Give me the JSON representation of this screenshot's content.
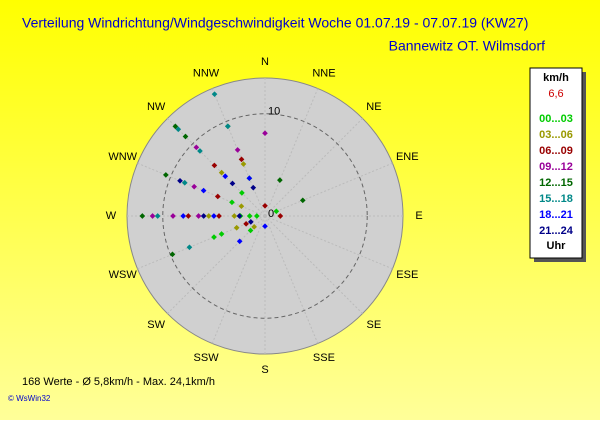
{
  "chart_data": {
    "type": "polar-scatter",
    "title": "Verteilung Windrichtung/Windgeschwindigkeit  Woche 01.07.19 - 07.07.19 (KW27)",
    "subtitle": "Bannewitz OT. Wilmsdorf",
    "directions": [
      "N",
      "NNE",
      "NE",
      "ENE",
      "E",
      "ESE",
      "SE",
      "SSE",
      "S",
      "SSW",
      "SW",
      "WSW",
      "W",
      "WNW",
      "NW",
      "NNW"
    ],
    "rlim": [
      0,
      13.5
    ],
    "rticks": [
      0,
      10
    ],
    "legend_title": "km/h",
    "legend_note": "6,6",
    "legend_footer": "Uhr",
    "series": [
      {
        "name": "00...03",
        "color": "#00cc00",
        "dir": [
          270,
          270,
          270,
          315,
          247.5,
          247.5,
          292.5,
          337.5,
          67.5,
          225
        ],
        "values": [
          0.8,
          1.5,
          2.4,
          3.2,
          4.6,
          5.4,
          3.5,
          4.0,
          1.2,
          2.0
        ]
      },
      {
        "name": "03...06",
        "color": "#999900",
        "dir": [
          270,
          270,
          292.5,
          315,
          337.5,
          225,
          247.5
        ],
        "values": [
          3.0,
          5.5,
          2.5,
          6.0,
          5.5,
          1.5,
          3.0
        ]
      },
      {
        "name": "06...09",
        "color": "#990000",
        "dir": [
          270,
          270,
          292.5,
          315,
          90,
          337.5,
          0,
          247.5
        ],
        "values": [
          4.5,
          7.5,
          5.0,
          7.0,
          1.5,
          6.0,
          1.0,
          2.0
        ]
      },
      {
        "name": "09...12",
        "color": "#990099",
        "dir": [
          270,
          270,
          270,
          292.5,
          315,
          0,
          337.5
        ],
        "values": [
          6.5,
          9.0,
          11.0,
          7.5,
          9.5,
          8.1,
          7.0
        ]
      },
      {
        "name": "12...15",
        "color": "#006600",
        "dir": [
          270,
          315,
          315,
          292.5,
          337.5,
          247.5,
          67.5,
          22.5
        ],
        "values": [
          12.0,
          11.0,
          12.4,
          10.5,
          9.5,
          9.8,
          4.0,
          3.8
        ]
      },
      {
        "name": "15...18",
        "color": "#008888",
        "dir": [
          270,
          315,
          315,
          337.5,
          337.5,
          292.5,
          247.5
        ],
        "values": [
          10.5,
          9.0,
          12.0,
          12.9,
          9.5,
          8.5,
          8.0
        ]
      },
      {
        "name": "18...21",
        "color": "#0000ff",
        "dir": [
          270,
          270,
          292.5,
          315,
          337.5,
          225,
          180
        ],
        "values": [
          5.0,
          8.0,
          6.5,
          5.5,
          4.0,
          3.5,
          1.0
        ]
      },
      {
        "name": "21...24",
        "color": "#000088",
        "dir": [
          270,
          270,
          292.5,
          315,
          337.5,
          247.5
        ],
        "values": [
          2.5,
          6.0,
          9.0,
          4.5,
          3.0,
          1.5
        ]
      }
    ],
    "footer": "168 Werte  -  Ø 5,8km/h  -  Max. 24,1km/h",
    "credit": "© WsWin32"
  }
}
